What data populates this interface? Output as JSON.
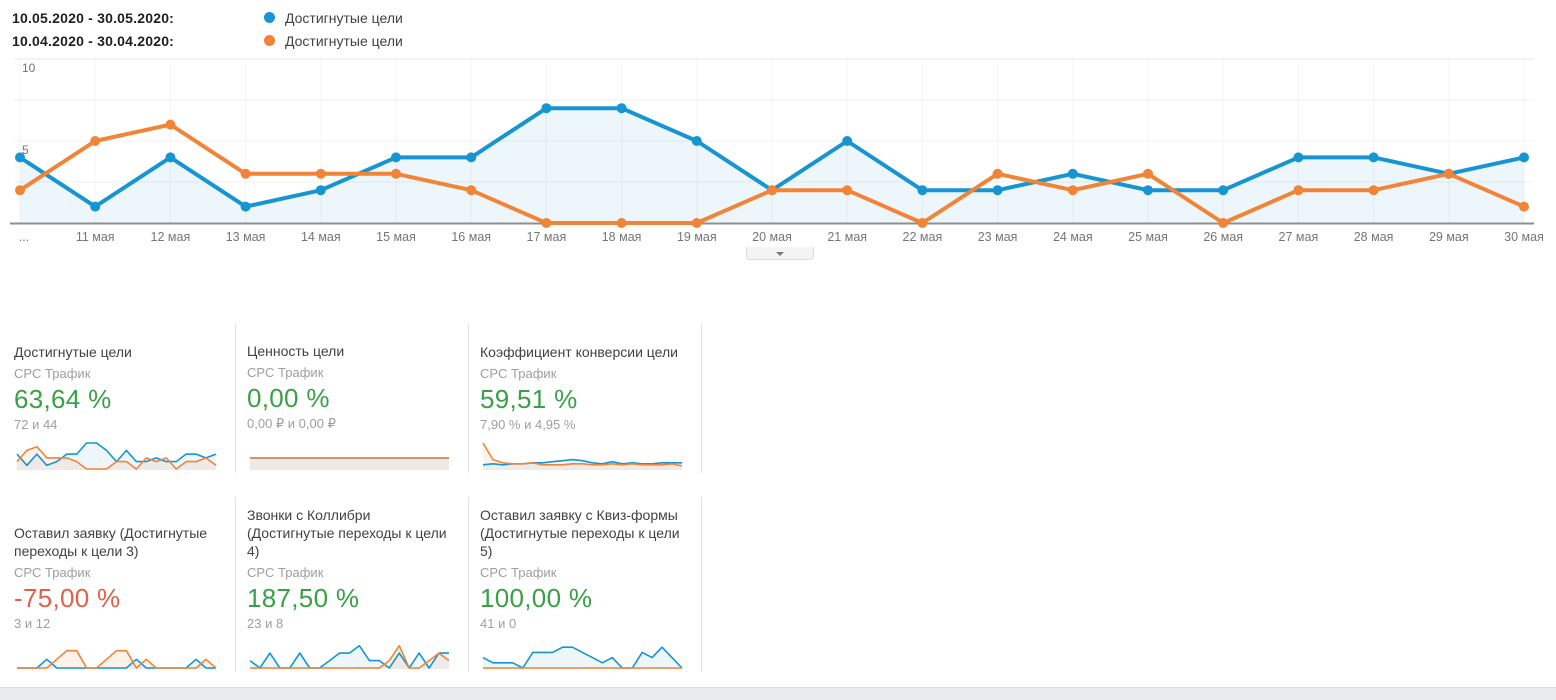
{
  "colors": {
    "blue": "#1695d2",
    "orange": "#f18436",
    "blue_fill": "rgba(22,149,210,0.08)",
    "orange_fill": "rgba(241,132,54,0.10)",
    "green": "#3aa046",
    "red": "#e2604a",
    "axis_text": "#757575",
    "grid": "#f0f0f0"
  },
  "legend": {
    "rows": [
      {
        "range": "10.05.2020 - 30.05.2020:",
        "label": "Достигнутые цели",
        "color": "#1695d2"
      },
      {
        "range": "10.04.2020 - 30.04.2020:",
        "label": "Достигнутые цели",
        "color": "#f18436"
      }
    ]
  },
  "chart_data": {
    "type": "line",
    "x": [
      "...",
      "11 мая",
      "12 мая",
      "13 мая",
      "14 мая",
      "15 мая",
      "16 мая",
      "17 мая",
      "18 мая",
      "19 мая",
      "20 мая",
      "21 мая",
      "22 мая",
      "23 мая",
      "24 мая",
      "25 мая",
      "26 мая",
      "27 мая",
      "28 мая",
      "29 мая",
      "30 мая"
    ],
    "series": [
      {
        "name": "Достигнутые цели (10.05.2020 - 30.05.2020)",
        "color": "#1695d2",
        "values": [
          4,
          1,
          4,
          1,
          2,
          4,
          4,
          7,
          7,
          5,
          2,
          5,
          2,
          2,
          3,
          2,
          2,
          4,
          4,
          3,
          4
        ],
        "total": 72
      },
      {
        "name": "Достигнутые цели (10.04.2020 - 30.04.2020)",
        "color": "#f18436",
        "values": [
          2,
          5,
          6,
          3,
          3,
          3,
          2,
          0,
          0,
          0,
          2,
          2,
          0,
          3,
          2,
          3,
          0,
          2,
          2,
          3,
          1
        ],
        "total": 44
      }
    ],
    "ylim": [
      0,
      10
    ],
    "yticks": [
      5,
      10
    ],
    "grid": true,
    "legend_position": "top-left"
  },
  "collapse_button": {
    "icon": "chevron-down-icon"
  },
  "cards": [
    {
      "title": "Достигнутые цели",
      "segment": "CPC Трафик",
      "change": "63,64 %",
      "change_color": "green",
      "sub": "72 и 44",
      "sparkline": {
        "type": "line",
        "ymax": 7,
        "blue": [
          4,
          1,
          4,
          1,
          2,
          4,
          4,
          7,
          7,
          5,
          2,
          5,
          2,
          2,
          3,
          2,
          2,
          4,
          4,
          3,
          4
        ],
        "orange": [
          2,
          5,
          6,
          3,
          3,
          3,
          2,
          0,
          0,
          0,
          2,
          2,
          0,
          3,
          2,
          3,
          0,
          2,
          2,
          3,
          1
        ]
      }
    },
    {
      "title": "Ценность цели",
      "segment": "CPC Трафик",
      "change": "0,00 %",
      "change_color": "green",
      "sub": "0,00 ₽ и 0,00 ₽",
      "sparkline": {
        "type": "line",
        "ymax": 0,
        "blue": [
          0,
          0,
          0,
          0,
          0,
          0,
          0,
          0,
          0,
          0,
          0,
          0,
          0,
          0,
          0,
          0,
          0,
          0,
          0,
          0,
          0
        ],
        "orange": [
          0,
          0,
          0,
          0,
          0,
          0,
          0,
          0,
          0,
          0,
          0,
          0,
          0,
          0,
          0,
          0,
          0,
          0,
          0,
          0,
          0
        ]
      }
    },
    {
      "title": "Коэффициент конверсии цели",
      "segment": "CPC Трафик",
      "change": "59,51 %",
      "change_color": "green",
      "sub": "7,90 % и 4,95 %",
      "sparkline": {
        "type": "line",
        "ymax": 25,
        "blue": [
          4,
          5,
          4,
          5,
          5,
          6,
          6,
          7,
          8,
          9,
          8,
          6,
          5,
          7,
          5,
          6,
          5,
          5,
          6,
          6,
          6
        ],
        "orange": [
          25,
          9,
          6,
          5,
          5,
          6,
          4,
          4,
          4,
          5,
          5,
          4,
          4,
          5,
          4,
          5,
          4,
          4,
          4,
          5,
          3
        ]
      }
    },
    {
      "title": "Оставил заявку (Достигнутые переходы к цели 3)",
      "segment": "CPC Трафик",
      "change": "-75,00 %",
      "change_color": "red",
      "sub": "3 и 12",
      "sparkline": {
        "type": "line",
        "ymax": 3,
        "blue": [
          0,
          0,
          0,
          1,
          0,
          0,
          0,
          0,
          0,
          0,
          0,
          0,
          1,
          0,
          0,
          0,
          0,
          0,
          1,
          0,
          0
        ],
        "orange": [
          0,
          0,
          0,
          0,
          1,
          2,
          2,
          0,
          0,
          1,
          2,
          2,
          0,
          1,
          0,
          0,
          0,
          0,
          0,
          1,
          0
        ]
      }
    },
    {
      "title": "Звонки с Коллибри (Достигнутые переходы к цели 4)",
      "segment": "CPC Трафик",
      "change": "187,50 %",
      "change_color": "green",
      "sub": "23 и 8",
      "sparkline": {
        "type": "line",
        "ymax": 3.5,
        "blue": [
          1,
          0,
          2,
          0,
          0,
          2,
          0,
          0,
          1,
          2,
          2,
          3,
          1,
          1,
          0,
          2,
          0,
          2,
          0,
          2,
          2
        ],
        "orange": [
          0,
          0,
          0,
          0,
          0,
          0,
          0,
          0,
          0,
          0,
          0,
          0,
          0,
          0,
          1,
          3,
          0,
          0,
          1,
          2,
          1
        ]
      }
    },
    {
      "title": "Оставил заявку с Квиз-формы (Достигнутые переходы к цели 5)",
      "segment": "CPC Трафик",
      "change": "100,00 %",
      "change_color": "green",
      "sub": "41 и 0",
      "sparkline": {
        "type": "line",
        "ymax": 5,
        "blue": [
          2,
          1,
          1,
          1,
          0,
          3,
          3,
          3,
          4,
          4,
          3,
          2,
          1,
          2,
          0,
          0,
          3,
          2,
          4,
          2,
          0
        ],
        "orange": [
          0,
          0,
          0,
          0,
          0,
          0,
          0,
          0,
          0,
          0,
          0,
          0,
          0,
          0,
          0,
          0,
          0,
          0,
          0,
          0,
          0
        ]
      }
    }
  ]
}
